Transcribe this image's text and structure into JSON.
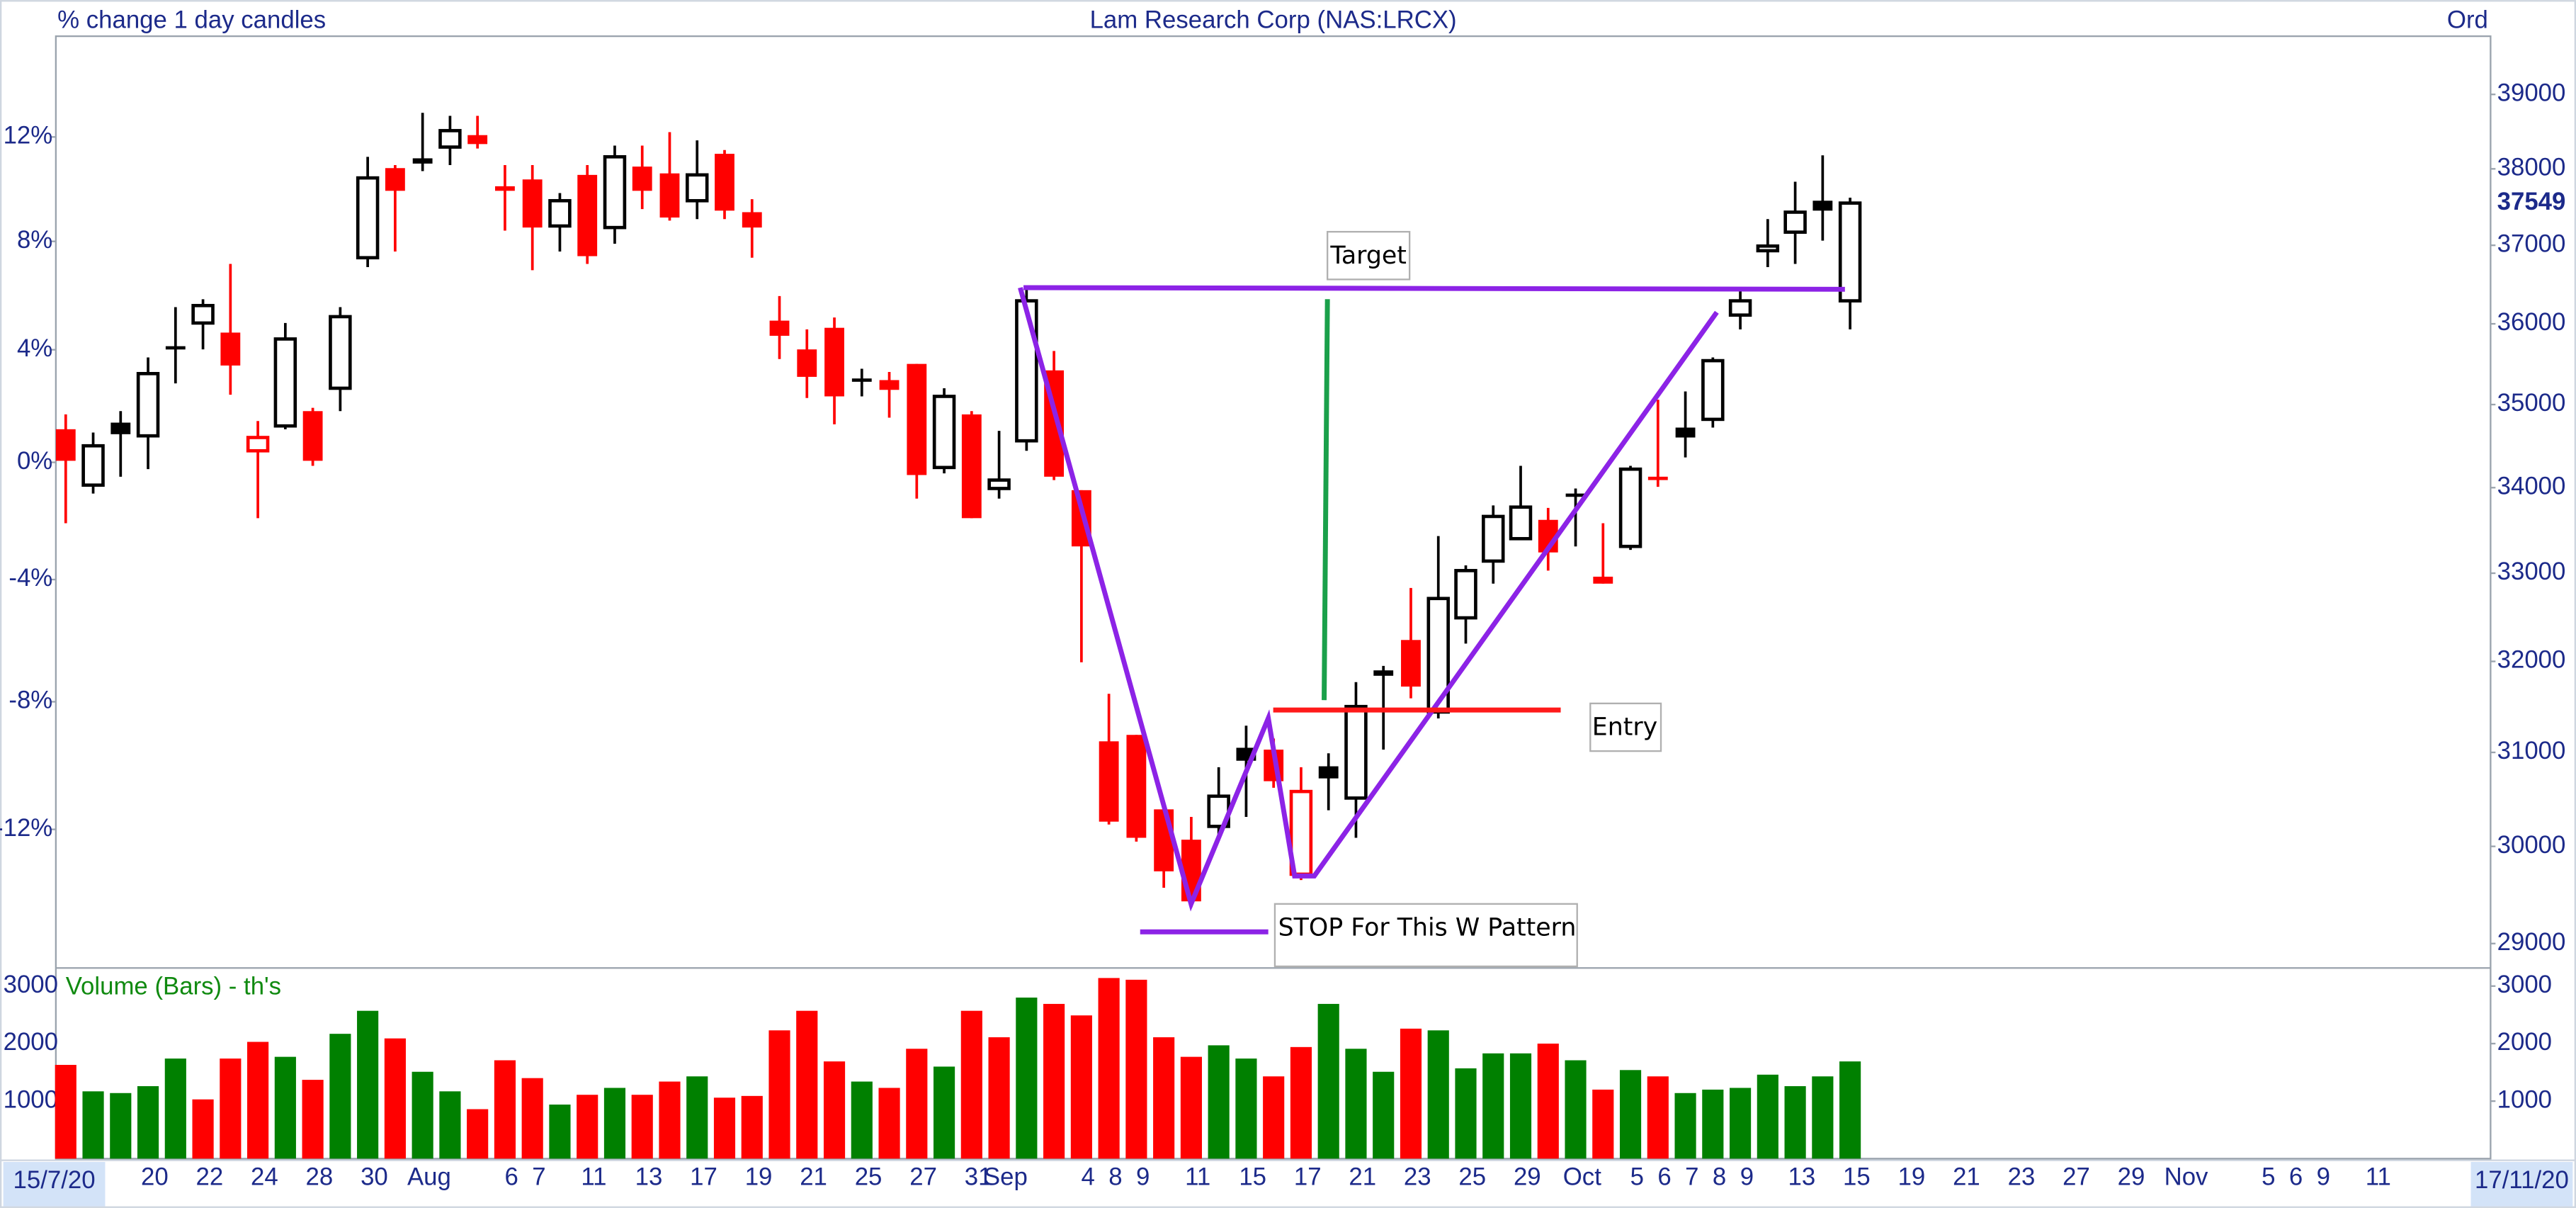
{
  "chart_data": {
    "type": "candlestick",
    "title": "Lam Research Corp (NAS:LRCX)",
    "y_label": "% change 1 day candles",
    "y2_label": "Ord",
    "y_scale": "log",
    "ylim": [
      -16.1,
      16.0
    ],
    "yticks": [
      {
        "value": 12,
        "label": "12%"
      },
      {
        "value": 8,
        "label": "8%"
      },
      {
        "value": 4,
        "label": "4%"
      },
      {
        "value": 0,
        "label": "0%"
      },
      {
        "value": -4,
        "label": "-4%"
      },
      {
        "value": -8,
        "label": "-8%"
      },
      {
        "value": -12,
        "label": "-12%"
      }
    ],
    "y2lim": [
      28770,
      39800
    ],
    "y2ticks": [
      29000,
      30000,
      31000,
      32000,
      33000,
      34000,
      35000,
      36000,
      37000,
      38000,
      39000
    ],
    "grid": false,
    "up_color": "#000000",
    "down_color": "#ff0000",
    "categories": [
      "15/7/20",
      null,
      null,
      "20",
      null,
      "22",
      null,
      "24",
      null,
      "28",
      null,
      "30",
      null,
      "Aug",
      null,
      null,
      "6",
      "7",
      null,
      "11",
      null,
      "13",
      null,
      "17",
      null,
      "19",
      null,
      "21",
      null,
      "25",
      null,
      "27",
      null,
      "31",
      "Sep",
      null,
      null,
      "4",
      "8",
      "9",
      null,
      "11",
      null,
      "15",
      null,
      "17",
      null,
      "21",
      null,
      "23",
      null,
      "25",
      null,
      "29",
      null,
      "Oct",
      null,
      "5",
      "6",
      "7",
      "8",
      "9",
      null,
      "13",
      null,
      "15",
      null,
      "19",
      null,
      "21",
      null,
      "23",
      null,
      "27",
      null,
      "29",
      null,
      "Nov",
      null,
      null,
      "5",
      "6",
      "9",
      null,
      "11",
      null,
      null,
      null,
      "17/11/20"
    ],
    "candles": {
      "axis": "y2",
      "open": [
        34700,
        34030,
        34780,
        34620,
        35720,
        36010,
        35890,
        34440,
        34740,
        34920,
        35200,
        36840,
        38010,
        38140,
        38290,
        38450,
        37770,
        37860,
        37250,
        37920,
        37230,
        38030,
        37940,
        37580,
        38200,
        37430,
        36040,
        35680,
        35950,
        35320,
        35300,
        35500,
        34240,
        34880,
        33990,
        34560,
        35420,
        33970,
        31120,
        31190,
        30390,
        30070,
        30210,
        31050,
        31030,
        29710,
        30850,
        30510,
        31900,
        32240,
        31440,
        32490,
        33140,
        33400,
        33620,
        33930,
        32960,
        33310,
        34130,
        34720,
        34820,
        36110,
        36930,
        37170,
        37580,
        36290,
        null,
        null,
        null,
        null,
        null,
        null,
        null,
        null,
        null,
        null,
        null,
        null,
        null,
        null,
        null,
        null,
        null,
        null,
        null,
        null,
        null,
        null,
        null
      ],
      "high": [
        34880,
        34660,
        34920,
        35580,
        36210,
        36310,
        36760,
        34800,
        36010,
        34960,
        36210,
        38160,
        38050,
        38750,
        38710,
        38710,
        38050,
        38050,
        37680,
        38050,
        38310,
        38310,
        38490,
        38380,
        38250,
        37600,
        36350,
        35930,
        36080,
        35440,
        35400,
        35500,
        35200,
        34920,
        34680,
        36450,
        35660,
        33970,
        31640,
        31190,
        30390,
        30310,
        30840,
        31290,
        31150,
        30840,
        30990,
        31770,
        31950,
        32830,
        33430,
        33090,
        33790,
        34260,
        33760,
        33990,
        33580,
        34260,
        35060,
        35160,
        35580,
        36450,
        37340,
        37830,
        38180,
        37620,
        null,
        null,
        null,
        null,
        null,
        null,
        null,
        null,
        null,
        null,
        null,
        null,
        null,
        null,
        null,
        null,
        null,
        null,
        null,
        null,
        null,
        null,
        null
      ],
      "low": [
        33580,
        33930,
        34130,
        34220,
        35260,
        35680,
        35120,
        33640,
        34700,
        34260,
        34920,
        36720,
        36920,
        37970,
        38050,
        38270,
        37190,
        36680,
        36920,
        36760,
        37020,
        37470,
        37320,
        37340,
        37340,
        36840,
        35560,
        35080,
        34760,
        35100,
        34840,
        33870,
        34170,
        33640,
        33870,
        34440,
        34090,
        31990,
        30230,
        30050,
        29570,
        29370,
        30090,
        30310,
        30620,
        29650,
        30380,
        30090,
        31030,
        31590,
        31370,
        32200,
        32880,
        33400,
        33030,
        33310,
        32880,
        33270,
        34010,
        34360,
        34720,
        35930,
        36720,
        36760,
        37060,
        35930,
        null,
        null,
        null,
        null,
        null,
        null,
        null,
        null,
        null,
        null,
        null,
        null,
        null,
        null,
        null,
        null,
        null,
        null,
        null,
        null,
        null,
        null,
        null
      ],
      "close": [
        34320,
        34500,
        34640,
        35380,
        35680,
        36230,
        35480,
        34600,
        35810,
        34320,
        36090,
        37880,
        37710,
        38070,
        38510,
        38330,
        37710,
        37230,
        37580,
        36860,
        38160,
        37710,
        37360,
        37920,
        37450,
        37230,
        35850,
        35340,
        35100,
        35280,
        35180,
        34150,
        35100,
        33640,
        34090,
        36290,
        34130,
        33310,
        30260,
        30090,
        29740,
        29430,
        30530,
        30910,
        30690,
        30580,
        30720,
        31500,
        31840,
        31720,
        32710,
        33030,
        33660,
        33770,
        33240,
        33910,
        32880,
        34220,
        34090,
        34600,
        35540,
        36290,
        36990,
        37430,
        37450,
        37549,
        null,
        null,
        null,
        null,
        null,
        null,
        null,
        null,
        null,
        null,
        null,
        null,
        null,
        null,
        null,
        null,
        null,
        null,
        null,
        null,
        null,
        null,
        null
      ]
    },
    "volume": {
      "name": "Volume (Bars) - th's",
      "ylim": [
        0,
        3314
      ],
      "yticks": [
        1000,
        2000,
        3000
      ],
      "values": [
        1630,
        1170,
        1140,
        1260,
        1740,
        1030,
        1740,
        2030,
        1770,
        1370,
        2170,
        2570,
        2090,
        1510,
        1170,
        860,
        1710,
        1400,
        940,
        1110,
        1230,
        1110,
        1340,
        1430,
        1060,
        1090,
        2230,
        2570,
        1690,
        1340,
        1230,
        1910,
        1600,
        2570,
        2110,
        2800,
        2690,
        2490,
        3140,
        3110,
        2110,
        1770,
        1970,
        1740,
        1430,
        1940,
        2690,
        1910,
        1510,
        2260,
        2230,
        1570,
        1830,
        1830,
        2000,
        1710,
        1200,
        1540,
        1430,
        1140,
        1200,
        1230,
        1460,
        1260,
        1430,
        1690,
        null,
        null,
        null,
        null,
        null,
        null,
        null,
        null,
        null,
        null,
        null,
        null,
        null,
        null,
        null,
        null,
        null,
        null,
        null,
        null,
        null,
        null,
        null
      ],
      "colors": [
        "#ff0000",
        "#008000",
        "#008000",
        "#008000",
        "#008000",
        "#ff0000",
        "#ff0000",
        "#ff0000",
        "#008000",
        "#ff0000",
        "#008000",
        "#008000",
        "#ff0000",
        "#008000",
        "#008000",
        "#ff0000",
        "#ff0000",
        "#ff0000",
        "#008000",
        "#ff0000",
        "#008000",
        "#ff0000",
        "#ff0000",
        "#008000",
        "#ff0000",
        "#ff0000",
        "#ff0000",
        "#ff0000",
        "#ff0000",
        "#008000",
        "#ff0000",
        "#ff0000",
        "#008000",
        "#ff0000",
        "#ff0000",
        "#008000",
        "#ff0000",
        "#ff0000",
        "#ff0000",
        "#ff0000",
        "#ff0000",
        "#ff0000",
        "#008000",
        "#008000",
        "#ff0000",
        "#ff0000",
        "#008000",
        "#008000",
        "#008000",
        "#ff0000",
        "#008000",
        "#008000",
        "#008000",
        "#008000",
        "#ff0000",
        "#008000",
        "#ff0000",
        "#008000",
        "#ff0000",
        "#008000",
        "#008000",
        "#008000",
        "#008000",
        "#008000",
        "#008000",
        "#008000",
        null,
        null,
        null,
        null,
        null,
        null,
        null,
        null,
        null,
        null,
        null,
        null,
        null,
        null,
        null,
        null,
        null,
        null,
        null,
        null,
        null,
        null,
        null
      ]
    },
    "annotations": [
      "Target",
      "Entry",
      "STOP For This W Pattern"
    ]
  }
}
